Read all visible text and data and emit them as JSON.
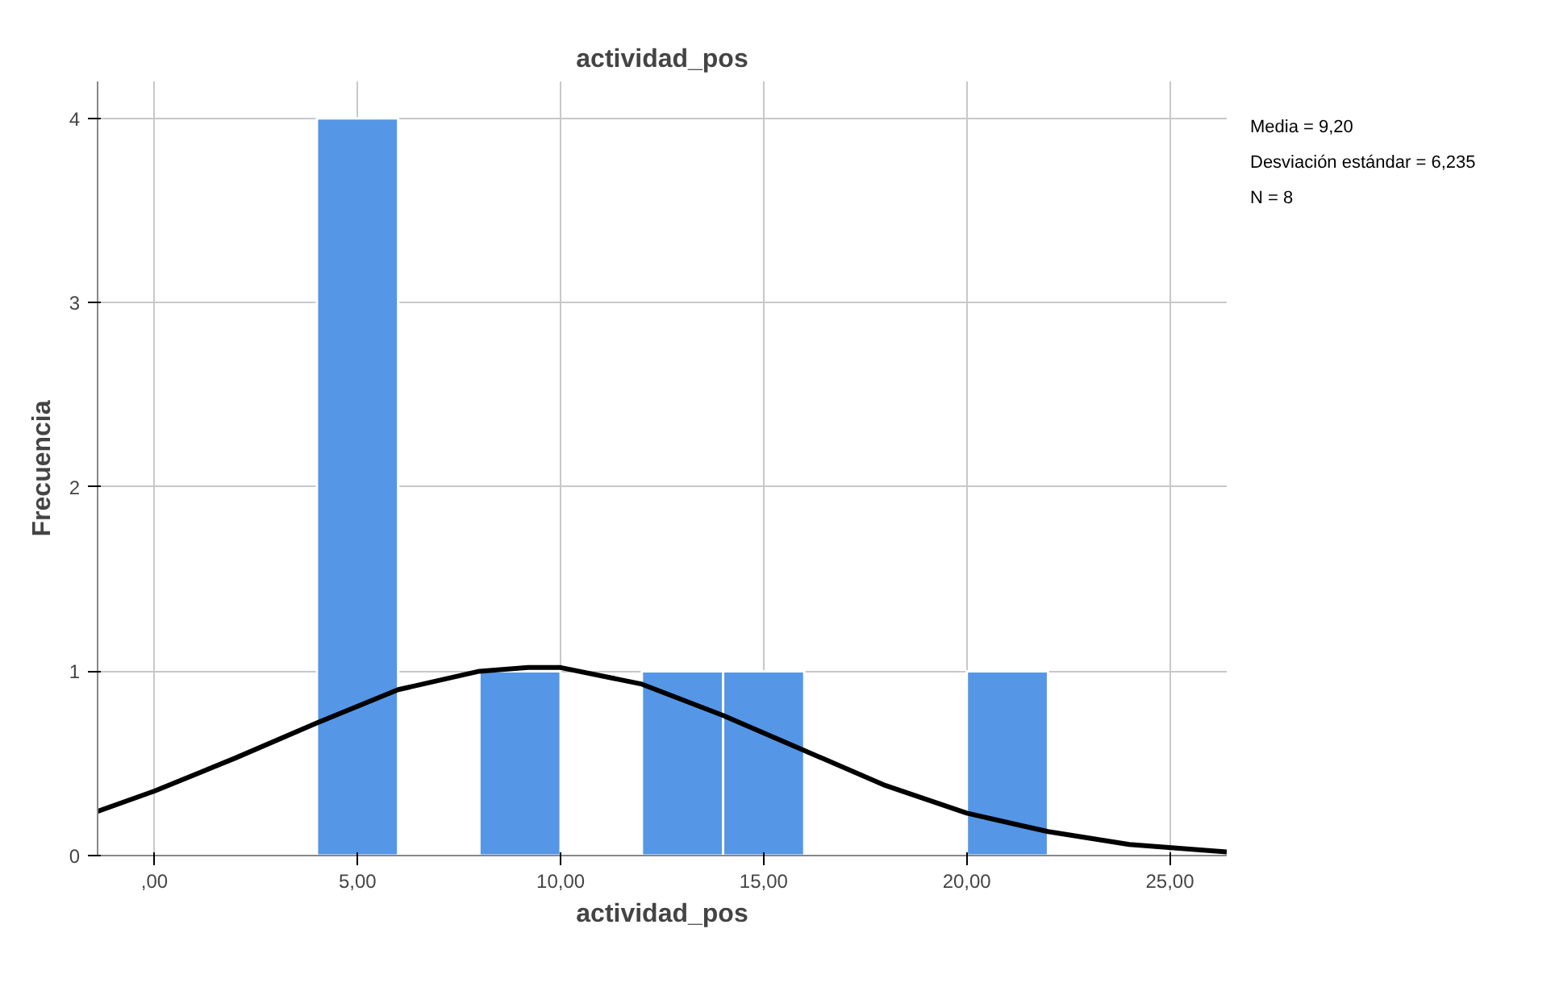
{
  "chart_data": {
    "type": "histogram",
    "title": "actividad_pos",
    "xlabel": "actividad_pos",
    "ylabel": "Frecuencia",
    "bins": [
      4,
      6,
      8,
      10,
      12,
      14,
      16,
      18,
      20,
      22
    ],
    "values": [
      4,
      0,
      1,
      0,
      1,
      1,
      0,
      0,
      1
    ],
    "color": "#5596e6",
    "series": [
      {
        "type": "line",
        "color": "#000000",
        "x": [
          -1.4,
          0,
          2,
          4,
          6,
          8,
          9.2,
          10,
          12,
          14,
          16,
          18,
          20,
          22,
          24,
          26.4
        ],
        "values": [
          0.24,
          0.35,
          0.53,
          0.72,
          0.9,
          1.0,
          1.02,
          1.02,
          0.93,
          0.76,
          0.57,
          0.38,
          0.23,
          0.13,
          0.06,
          0.02
        ]
      }
    ],
    "xlim": [
      -1.4,
      26.4
    ],
    "ylim": [
      0,
      4.2
    ],
    "xticks": [
      {
        "value": 0,
        "label": ",00"
      },
      {
        "value": 5,
        "label": "5,00"
      },
      {
        "value": 10,
        "label": "10,00"
      },
      {
        "value": 15,
        "label": "15,00"
      },
      {
        "value": 20,
        "label": "20,00"
      },
      {
        "value": 25,
        "label": "25,00"
      }
    ],
    "yticks": [
      0,
      1,
      2,
      3,
      4
    ],
    "grid": true,
    "annotations": [
      "Media = 9,20",
      "Desviación estándar = 6,235",
      "N = 8"
    ]
  }
}
